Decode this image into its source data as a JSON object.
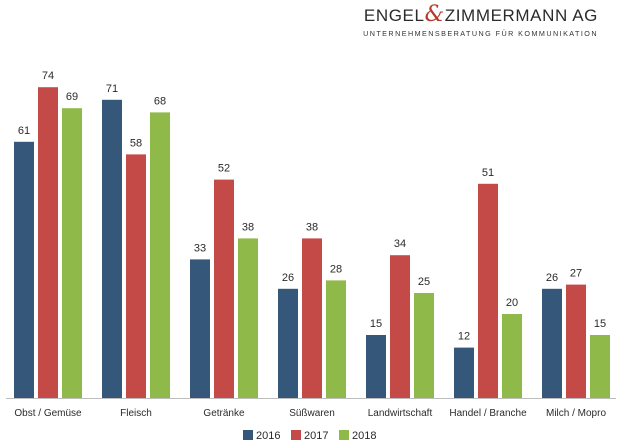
{
  "logo": {
    "name_left": "ENGEL",
    "ampersand": "&",
    "name_right": "ZIMMERMANN AG",
    "tagline": "UNTERNEHMENSBERATUNG FÜR KOMMUNIKATION",
    "accent_color": "#b5392c"
  },
  "chart_data": {
    "type": "bar",
    "title": "",
    "xlabel": "",
    "ylabel": "",
    "ylim": [
      0,
      80
    ],
    "grid": false,
    "legend_position": "bottom-center",
    "categories": [
      "Obst / Gemüse",
      "Fleisch",
      "Getränke",
      "Süßwaren",
      "Landwirtschaft",
      "Handel / Branche",
      "Milch / Mopro"
    ],
    "series": [
      {
        "name": "2016",
        "color": "#35587a",
        "values": [
          61,
          71,
          33,
          26,
          15,
          12,
          26
        ]
      },
      {
        "name": "2017",
        "color": "#c44a47",
        "values": [
          74,
          58,
          52,
          38,
          34,
          51,
          27
        ]
      },
      {
        "name": "2018",
        "color": "#8fba4a",
        "values": [
          69,
          68,
          38,
          28,
          25,
          20,
          15
        ]
      }
    ]
  }
}
